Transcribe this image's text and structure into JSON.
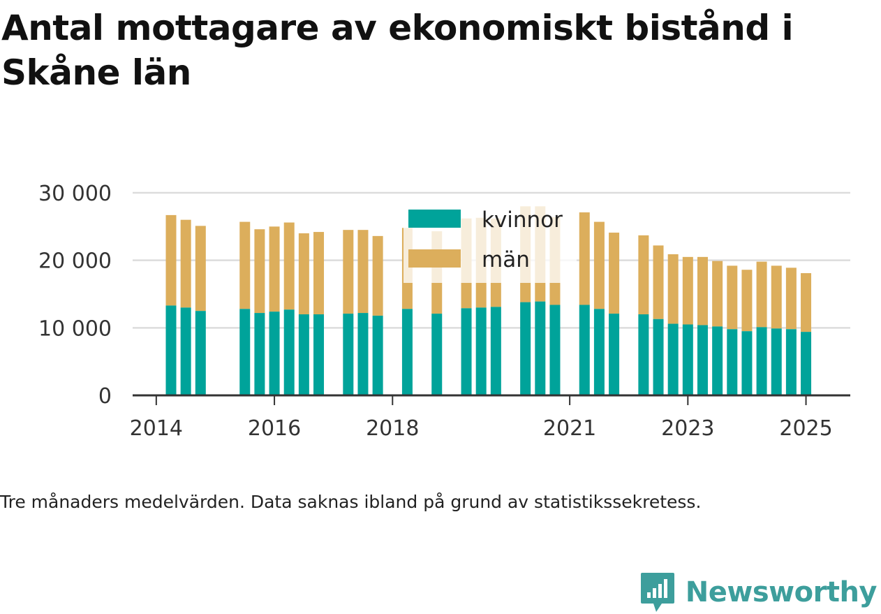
{
  "title": "Antal mottagare av ekonomiskt bistånd i Skåne län",
  "note": "Tre månaders medelvärden. Data saknas ibland på grund av statistikssekretess.",
  "brand": {
    "name": "Newsworthy",
    "icon": "chart-bubble-icon"
  },
  "colors": {
    "kvinnor": "#00a39a",
    "man": "#dcae5c",
    "grid": "#dcdcdc",
    "axis": "#333333",
    "brand": "#3d9e9c"
  },
  "chart_data": {
    "type": "bar",
    "stacked": true,
    "title": "Antal mottagare av ekonomiskt bistånd i Skåne län",
    "xlabel": "",
    "ylabel": "",
    "ylim": [
      0,
      30000
    ],
    "yticks": [
      0,
      10000,
      20000,
      30000
    ],
    "ytick_labels": [
      "0",
      "10 000",
      "20 000",
      "30 000"
    ],
    "xlim": [
      2013.6,
      2025.75
    ],
    "xticks": [
      2014,
      2016,
      2018,
      2021,
      2023,
      2025
    ],
    "xtick_labels": [
      "2014",
      "2016",
      "2018",
      "2021",
      "2023",
      "2025"
    ],
    "grid": true,
    "legend_position": "top-center",
    "x": [
      2014.25,
      2014.5,
      2014.75,
      2015.5,
      2015.75,
      2016.0,
      2016.25,
      2016.5,
      2016.75,
      2017.25,
      2017.5,
      2017.75,
      2018.25,
      2018.75,
      2019.25,
      2019.5,
      2019.75,
      2020.25,
      2020.5,
      2020.75,
      2021.25,
      2021.5,
      2021.75,
      2022.25,
      2022.5,
      2022.75,
      2023.0,
      2023.25,
      2023.5,
      2023.75,
      2024.0,
      2024.25,
      2024.5,
      2024.75,
      2025.0
    ],
    "series": [
      {
        "name": "kvinnor",
        "values": [
          13300,
          13000,
          12500,
          12800,
          12200,
          12400,
          12700,
          12000,
          12000,
          12100,
          12200,
          11800,
          12800,
          12100,
          12900,
          13000,
          13100,
          13800,
          13900,
          13400,
          13400,
          12800,
          12100,
          12000,
          11300,
          10600,
          10500,
          10400,
          10200,
          9800,
          9500,
          10100,
          9900,
          9800,
          9400
        ]
      },
      {
        "name": "män",
        "values": [
          13400,
          13000,
          12600,
          12900,
          12400,
          12600,
          12900,
          12000,
          12200,
          12400,
          12300,
          11800,
          12000,
          12200,
          13300,
          13300,
          13100,
          14200,
          14100,
          13000,
          13700,
          12900,
          12000,
          11700,
          10900,
          10300,
          10000,
          10100,
          9700,
          9400,
          9100,
          9700,
          9300,
          9100,
          8700
        ]
      }
    ]
  }
}
